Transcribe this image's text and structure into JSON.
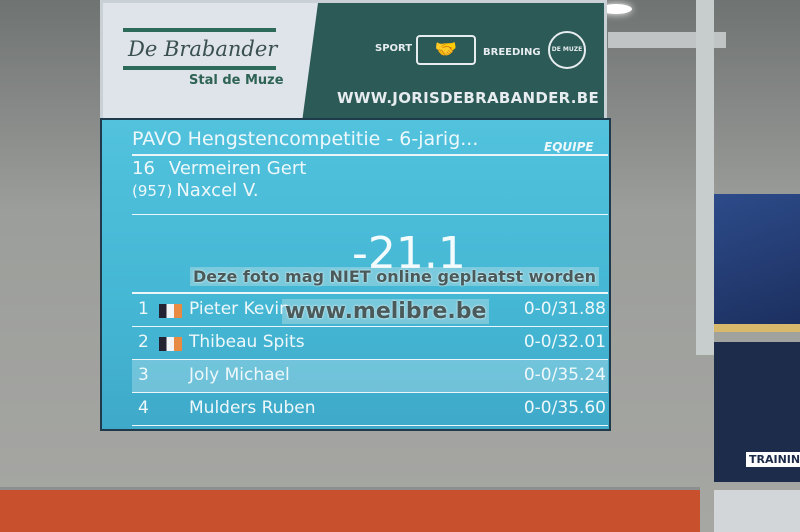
{
  "banner": {
    "brand": "De Brabander",
    "subtitle": "Stal de Muze",
    "sport": "SPORT",
    "breeding": "BREEDING",
    "seal": "DE MUZE",
    "website": "WWW.JORISDEBRABANDER.BE",
    "icons": [
      "handshake-icon",
      "ribbon-seal-icon"
    ]
  },
  "scoreboard": {
    "title": "PAVO Hengstencompetitie - 6-jarig...",
    "logo": "EQUIPE",
    "current": {
      "number": "16",
      "rider": "Vermeiren Gert",
      "horse_number": "(957)",
      "horse": "Naxcel V."
    },
    "timer": "-21.1",
    "results": [
      {
        "rank": "1",
        "flag": true,
        "name": "Pieter Kevin",
        "score": "0-0/31.88"
      },
      {
        "rank": "2",
        "flag": true,
        "name": "Thibeau Spits",
        "score": "0-0/32.01"
      },
      {
        "rank": "3",
        "flag": false,
        "name": "Joly Michael",
        "score": "0-0/35.24"
      },
      {
        "rank": "4",
        "flag": false,
        "name": "Mulders Ruben",
        "score": "0-0/35.60"
      }
    ],
    "colors": {
      "screen": "#4ab8d4",
      "flag_orange": "#e98a43"
    }
  },
  "watermark": {
    "line1": "Deze foto mag NIET online geplaatst worden",
    "line2": "www.melibre.be"
  },
  "side_poster": {
    "label": "TRAININ"
  },
  "colors": {
    "banner_green": "#2c5a56",
    "floor_band": "#c9502d"
  }
}
